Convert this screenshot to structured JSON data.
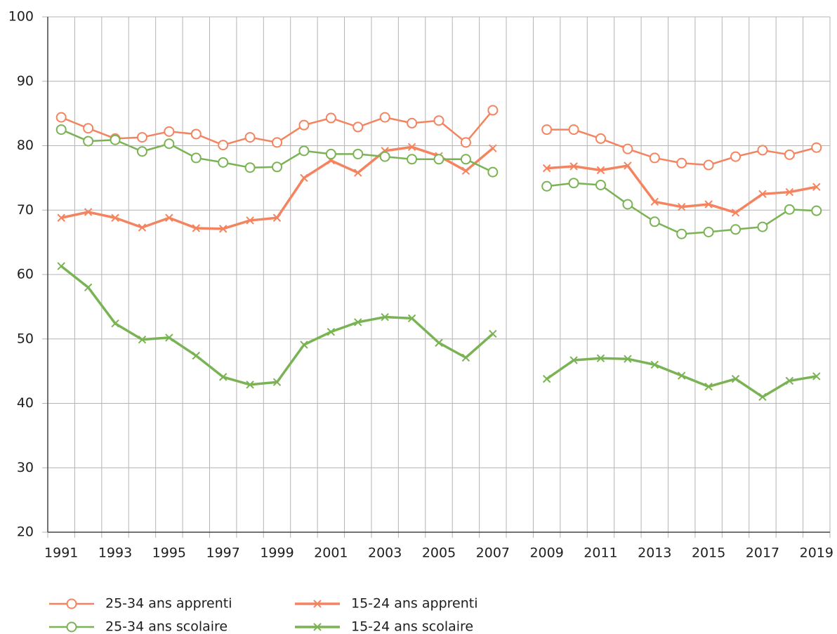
{
  "chart_data": {
    "type": "line",
    "categories": [
      "1991",
      null,
      "1993",
      null,
      "1995",
      null,
      "1997",
      null,
      "1999",
      null,
      "2001",
      null,
      "2003",
      null,
      "2005",
      null,
      "2007",
      null,
      "2009",
      null,
      "2011",
      null,
      "2013",
      null,
      "2015",
      null,
      "2017",
      null,
      "2019"
    ],
    "series": [
      {
        "name": "25-34 ans apprenti",
        "color": "#f4845f",
        "marker": "circle",
        "values": [
          84.4,
          82.7,
          81.1,
          81.3,
          82.2,
          81.8,
          80.1,
          81.3,
          80.5,
          83.2,
          84.3,
          82.9,
          84.4,
          83.5,
          83.9,
          80.5,
          85.5,
          null,
          82.5,
          82.5,
          81.1,
          79.5,
          78.1,
          77.3,
          77.0,
          78.3,
          79.3,
          78.6,
          79.7
        ]
      },
      {
        "name": "15-24 ans apprenti",
        "color": "#f4845f",
        "marker": "x",
        "values": [
          68.8,
          69.7,
          68.8,
          67.3,
          68.8,
          67.2,
          67.1,
          68.4,
          68.8,
          75.0,
          77.7,
          75.8,
          79.2,
          79.8,
          78.4,
          76.1,
          79.6,
          null,
          76.5,
          76.8,
          76.2,
          76.9,
          71.3,
          70.5,
          70.9,
          69.6,
          72.5,
          72.8,
          73.6
        ]
      },
      {
        "name": "25-34 ans scolaire",
        "color": "#7ab354",
        "marker": "circle",
        "values": [
          82.5,
          80.7,
          80.9,
          79.1,
          80.3,
          78.1,
          77.4,
          76.6,
          76.7,
          79.2,
          78.7,
          78.7,
          78.3,
          77.9,
          77.9,
          77.9,
          75.9,
          null,
          73.7,
          74.2,
          73.9,
          70.9,
          68.2,
          66.3,
          66.6,
          67.0,
          67.4,
          70.1,
          69.9
        ]
      },
      {
        "name": "15-24 ans scolaire",
        "color": "#7ab354",
        "marker": "x",
        "values": [
          61.3,
          58.0,
          52.4,
          49.9,
          50.2,
          47.4,
          44.1,
          42.9,
          43.3,
          49.1,
          51.1,
          52.6,
          53.4,
          53.2,
          49.4,
          47.1,
          50.8,
          null,
          43.8,
          46.7,
          47.0,
          46.9,
          46.0,
          44.3,
          42.6,
          43.8,
          41.0,
          43.5,
          44.2
        ]
      }
    ],
    "ylim": [
      20,
      100
    ],
    "yticks": [
      20,
      30,
      40,
      50,
      60,
      70,
      80,
      90,
      100
    ],
    "grid": true
  }
}
